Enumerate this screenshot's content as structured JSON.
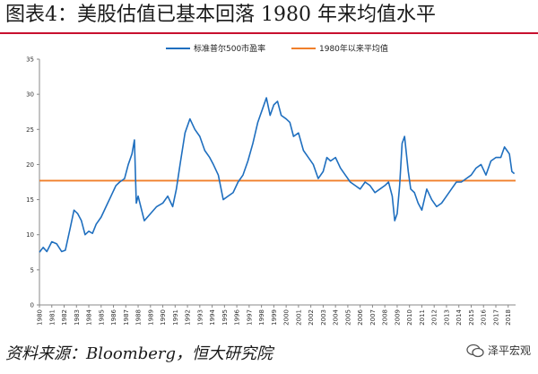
{
  "title": "图表4：美股估值已基本回落 1980 年来均值水平",
  "source": "资料来源：Bloomberg，恒大研究院",
  "watermark": "泽平宏观",
  "colors": {
    "pe_line": "#1f6fbf",
    "mean_line": "#f07f2a",
    "title_rule": "#c8102e"
  },
  "chart_data": {
    "type": "line",
    "title": "图表4：美股估值已基本回落 1980 年来均值水平",
    "xlabel": "",
    "ylabel": "",
    "ylim": [
      0,
      35
    ],
    "yticks": [
      0,
      5,
      10,
      15,
      20,
      25,
      30,
      35
    ],
    "xlim": [
      1980,
      2018.6
    ],
    "xticks": [
      "1980",
      "1981",
      "1982",
      "1983",
      "1984",
      "1985",
      "1986",
      "1987",
      "1988",
      "1989",
      "1990",
      "1991",
      "1992",
      "1993",
      "1994",
      "1995",
      "1996",
      "1997",
      "1998",
      "1999",
      "2000",
      "2001",
      "2002",
      "2003",
      "2004",
      "2005",
      "2006",
      "2007",
      "2008",
      "2009",
      "2010",
      "2011",
      "2012",
      "2013",
      "2014",
      "2015",
      "2016",
      "2017",
      "2018"
    ],
    "legend_position": "top",
    "grid": false,
    "series": [
      {
        "name": "标准普尔500市盈率",
        "x": [
          1980.0,
          1980.3,
          1980.6,
          1981.0,
          1981.4,
          1981.8,
          1982.1,
          1982.5,
          1982.8,
          1983.1,
          1983.4,
          1983.7,
          1984.0,
          1984.3,
          1984.6,
          1985.0,
          1985.4,
          1985.8,
          1986.2,
          1986.5,
          1986.9,
          1987.2,
          1987.5,
          1987.7,
          1987.85,
          1988.0,
          1988.5,
          1989.0,
          1989.5,
          1990.0,
          1990.4,
          1990.8,
          1991.1,
          1991.4,
          1991.8,
          1992.2,
          1992.6,
          1993.0,
          1993.4,
          1993.8,
          1994.1,
          1994.5,
          1994.9,
          1995.3,
          1995.7,
          1996.1,
          1996.5,
          1996.9,
          1997.3,
          1997.7,
          1998.1,
          1998.4,
          1998.7,
          1999.0,
          1999.3,
          1999.6,
          2000.0,
          2000.3,
          2000.6,
          2001.0,
          2001.4,
          2001.8,
          2002.2,
          2002.6,
          2003.0,
          2003.3,
          2003.6,
          2004.0,
          2004.4,
          2004.8,
          2005.2,
          2005.6,
          2006.0,
          2006.4,
          2006.8,
          2007.2,
          2007.6,
          2008.0,
          2008.3,
          2008.6,
          2008.8,
          2009.0,
          2009.2,
          2009.4,
          2009.6,
          2009.9,
          2010.1,
          2010.4,
          2010.7,
          2011.0,
          2011.4,
          2011.8,
          2012.2,
          2012.6,
          2013.0,
          2013.4,
          2013.8,
          2014.2,
          2014.6,
          2015.0,
          2015.4,
          2015.8,
          2016.2,
          2016.6,
          2017.0,
          2017.4,
          2017.7,
          2017.9,
          2018.1,
          2018.3,
          2018.5
        ],
        "values": [
          7.5,
          8.2,
          7.6,
          9.0,
          8.7,
          7.6,
          7.8,
          11.0,
          13.5,
          13.0,
          12.0,
          10.0,
          10.5,
          10.2,
          11.5,
          12.5,
          14.0,
          15.5,
          17.0,
          17.5,
          18.0,
          20.0,
          21.5,
          23.5,
          14.5,
          15.5,
          12.0,
          13.0,
          14.0,
          14.5,
          15.5,
          14.0,
          16.5,
          20.0,
          24.5,
          26.5,
          25.0,
          24.0,
          22.0,
          21.0,
          20.0,
          18.5,
          15.0,
          15.5,
          16.0,
          17.5,
          18.5,
          20.5,
          23.0,
          26.0,
          28.0,
          29.5,
          27.0,
          28.5,
          29.0,
          27.0,
          26.5,
          26.0,
          24.0,
          24.5,
          22.0,
          21.0,
          20.0,
          18.0,
          19.0,
          21.0,
          20.5,
          21.0,
          19.5,
          18.5,
          17.5,
          17.0,
          16.5,
          17.5,
          17.0,
          16.0,
          16.5,
          17.0,
          17.5,
          15.5,
          12.0,
          13.0,
          17.0,
          23.0,
          24.0,
          19.0,
          16.5,
          16.0,
          14.5,
          13.5,
          16.5,
          15.0,
          14.0,
          14.5,
          15.5,
          16.5,
          17.5,
          17.5,
          18.0,
          18.5,
          19.5,
          20.0,
          18.5,
          20.5,
          21.0,
          21.0,
          22.5,
          22.0,
          21.5,
          19.0,
          18.7
        ]
      },
      {
        "name": "1980年以来平均值",
        "x": [
          1980.0,
          2018.6
        ],
        "values": [
          17.7,
          17.7
        ]
      }
    ]
  }
}
